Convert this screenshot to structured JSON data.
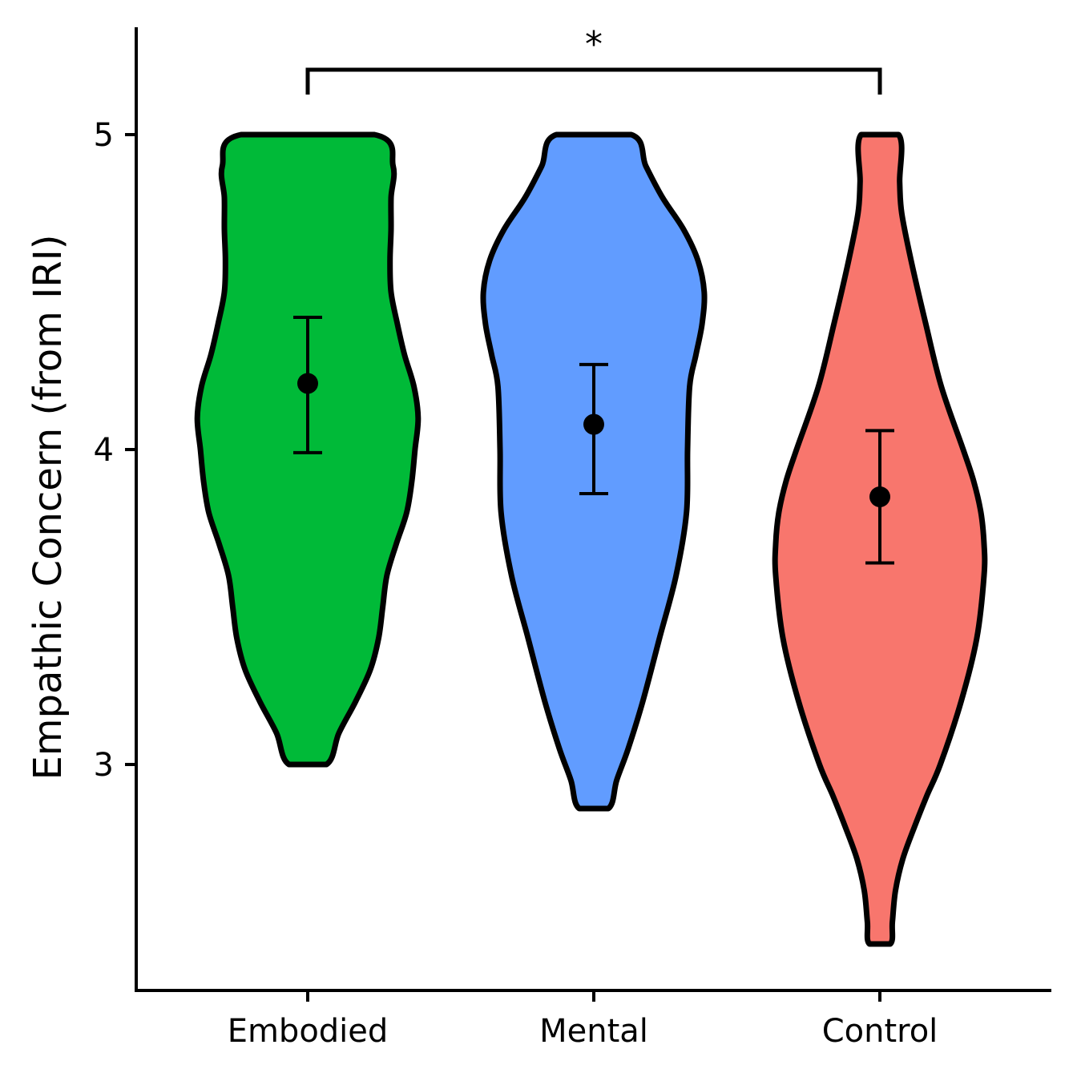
{
  "chart_data": {
    "type": "violin",
    "title": "",
    "xlabel": "",
    "ylabel": "Empathic Concern (from IRI)",
    "ylim": [
      2.3,
      5.33
    ],
    "yticks": [
      3,
      4,
      5
    ],
    "ytick_labels": [
      "3",
      "4",
      "5"
    ],
    "grid": false,
    "legend": "none",
    "categories": [
      "Embodied",
      "Mental",
      "Control"
    ],
    "series": [
      {
        "category": "Embodied",
        "color": "#00BA38",
        "mean": 4.21,
        "ci_low": 3.99,
        "ci_high": 4.42,
        "min": 3.0,
        "max": 5.0,
        "density": [
          [
            3.0,
            0.18
          ],
          [
            3.1,
            0.3
          ],
          [
            3.2,
            0.46
          ],
          [
            3.3,
            0.6
          ],
          [
            3.4,
            0.68
          ],
          [
            3.5,
            0.72
          ],
          [
            3.6,
            0.76
          ],
          [
            3.7,
            0.85
          ],
          [
            3.8,
            0.95
          ],
          [
            3.9,
            1.0
          ],
          [
            4.0,
            1.03
          ],
          [
            4.1,
            1.06
          ],
          [
            4.2,
            1.02
          ],
          [
            4.3,
            0.93
          ],
          [
            4.4,
            0.86
          ],
          [
            4.5,
            0.8
          ],
          [
            4.6,
            0.79
          ],
          [
            4.7,
            0.8
          ],
          [
            4.8,
            0.8
          ],
          [
            4.9,
            0.82
          ],
          [
            5.0,
            0.64
          ]
        ]
      },
      {
        "category": "Mental",
        "color": "#619CFF",
        "mean": 4.08,
        "ci_low": 3.86,
        "ci_high": 4.27,
        "min": 2.86,
        "max": 5.0,
        "density": [
          [
            2.86,
            0.14
          ],
          [
            2.95,
            0.22
          ],
          [
            3.05,
            0.33
          ],
          [
            3.2,
            0.47
          ],
          [
            3.4,
            0.63
          ],
          [
            3.6,
            0.79
          ],
          [
            3.8,
            0.89
          ],
          [
            4.0,
            0.9
          ],
          [
            4.2,
            0.92
          ],
          [
            4.3,
            0.98
          ],
          [
            4.4,
            1.04
          ],
          [
            4.5,
            1.06
          ],
          [
            4.6,
            1.0
          ],
          [
            4.7,
            0.86
          ],
          [
            4.8,
            0.66
          ],
          [
            4.9,
            0.5
          ],
          [
            5.0,
            0.36
          ]
        ]
      },
      {
        "category": "Control",
        "color": "#F8766D",
        "mean": 3.85,
        "ci_low": 3.64,
        "ci_high": 4.06,
        "min": 2.43,
        "max": 5.0,
        "density": [
          [
            2.43,
            0.1
          ],
          [
            2.5,
            0.12
          ],
          [
            2.6,
            0.15
          ],
          [
            2.7,
            0.22
          ],
          [
            2.8,
            0.33
          ],
          [
            2.9,
            0.45
          ],
          [
            3.0,
            0.58
          ],
          [
            3.2,
            0.78
          ],
          [
            3.4,
            0.93
          ],
          [
            3.6,
            1.0
          ],
          [
            3.7,
            1.0
          ],
          [
            3.8,
            0.97
          ],
          [
            3.9,
            0.9
          ],
          [
            4.0,
            0.8
          ],
          [
            4.2,
            0.59
          ],
          [
            4.4,
            0.44
          ],
          [
            4.6,
            0.3
          ],
          [
            4.75,
            0.21
          ],
          [
            4.85,
            0.19
          ],
          [
            5.0,
            0.18
          ]
        ]
      }
    ],
    "annotations": [
      {
        "type": "bracket",
        "from": "Embodied",
        "to": "Control",
        "label": "*"
      }
    ]
  }
}
